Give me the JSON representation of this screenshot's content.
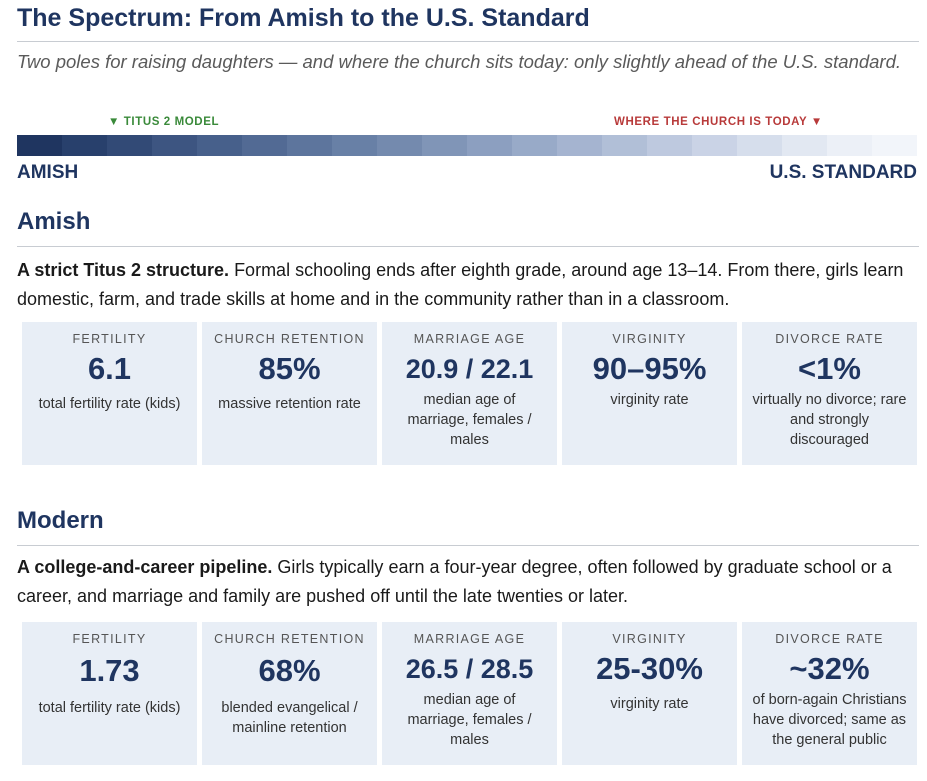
{
  "title": "The Spectrum: From Amish to the U.S. Standard",
  "subtitle": "Two poles for raising daughters — and where the church sits today: only slightly ahead of the U.S. standard.",
  "spectrum": {
    "marker_left": "▼ TITUS 2 MODEL",
    "marker_right": "WHERE THE CHURCH IS TODAY ▼",
    "pole_left": "AMISH",
    "pole_right": "U.S. STANDARD",
    "colors": [
      "#1f3560",
      "#28406c",
      "#324a76",
      "#3d5581",
      "#47608b",
      "#526a94",
      "#5d759d",
      "#6880a6",
      "#748aae",
      "#8095b7",
      "#8c9fc0",
      "#98aac8",
      "#a5b4d0",
      "#b1bfd7",
      "#bec9df",
      "#cad3e6",
      "#d6deec",
      "#e2e8f2",
      "#ecf0f7",
      "#f2f5fa"
    ]
  },
  "amish": {
    "heading": "Amish",
    "lead": "A strict Titus 2 structure.",
    "text": " Formal schooling ends after eighth grade, around age 13–14. From there, girls learn domestic, farm, and trade skills at home and in the community rather than in a classroom.",
    "stats": [
      {
        "label": "FERTILITY",
        "value": "6.1",
        "sub": "total fertility rate (kids)"
      },
      {
        "label": "CHURCH RETENTION",
        "value": "85%",
        "sub": "massive retention rate"
      },
      {
        "label": "MARRIAGE AGE",
        "value": "20.9 / 22.1",
        "sub": "median age of marriage, females / males"
      },
      {
        "label": "VIRGINITY",
        "value": "90–95%",
        "sub": "virginity rate"
      },
      {
        "label": "DIVORCE RATE",
        "value": "<1%",
        "sub": "virtually no divorce; rare and strongly discouraged"
      }
    ]
  },
  "modern": {
    "heading": "Modern",
    "lead": "A college-and-career pipeline.",
    "text": " Girls typically earn a four-year degree, often followed by graduate school or a career, and marriage and family are pushed off until the late twenties or later.",
    "stats": [
      {
        "label": "FERTILITY",
        "value": "1.73",
        "sub": "total fertility rate (kids)"
      },
      {
        "label": "CHURCH RETENTION",
        "value": "68%",
        "sub": "blended evangelical / mainline retention"
      },
      {
        "label": "MARRIAGE AGE",
        "value": "26.5 / 28.5",
        "sub": "median age of marriage, females / males"
      },
      {
        "label": "VIRGINITY",
        "value": "25-30%",
        "sub": "virginity rate"
      },
      {
        "label": "DIVORCE RATE",
        "value": "~32%",
        "sub": "of born-again Christians have divorced; same as the general public"
      }
    ]
  }
}
